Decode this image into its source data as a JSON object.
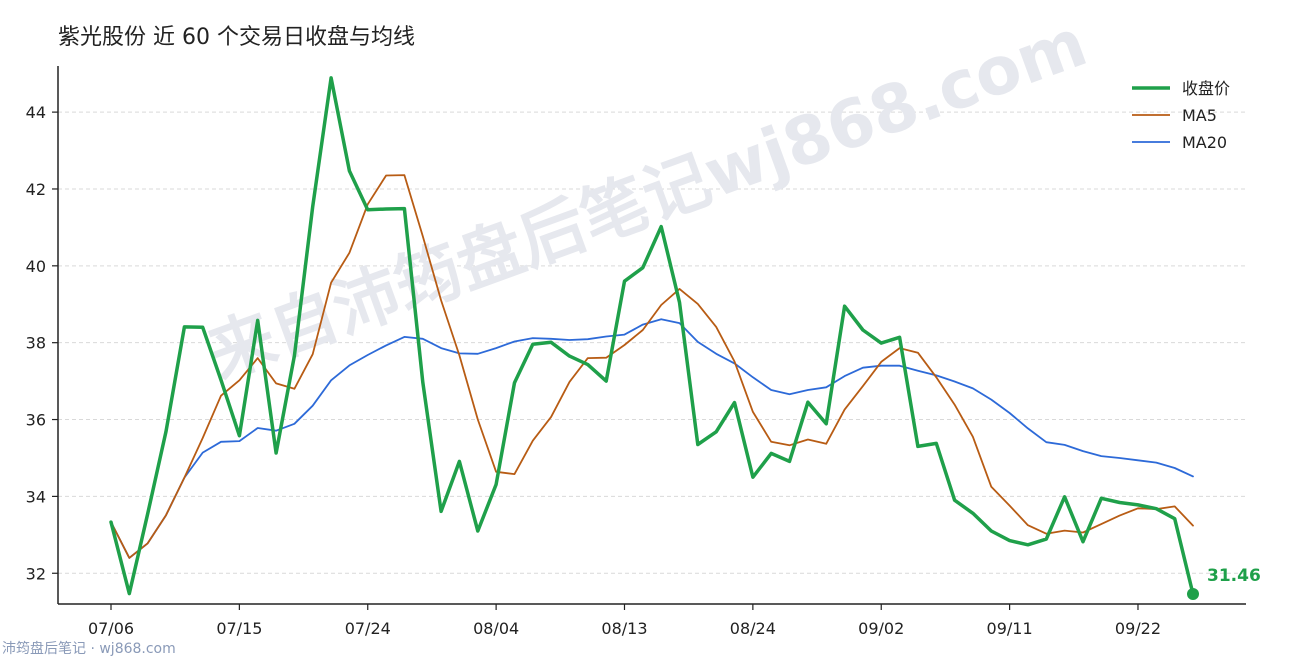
{
  "chart_data": {
    "type": "line",
    "title": "紫光股份 近 60 个交易日收盘与均线",
    "x_ticks": [
      "07/06",
      "07/15",
      "07/24",
      "08/04",
      "08/13",
      "08/24",
      "09/02",
      "09/11",
      "09/22"
    ],
    "ylim": [
      31.2,
      45.2
    ],
    "y_ticks": [
      32,
      34,
      36,
      38,
      40,
      42,
      44
    ],
    "grid": "horizontal-dashed",
    "legend_position": "top-right",
    "series": [
      {
        "name": "收盘价",
        "color": "#1fa04a",
        "values": [
          33.33,
          31.47,
          33.55,
          35.69,
          38.41,
          38.4,
          37.03,
          35.58,
          38.58,
          35.13,
          37.66,
          41.54,
          44.89,
          42.47,
          41.46,
          41.48,
          41.49,
          36.97,
          33.61,
          34.91,
          33.1,
          34.31,
          36.96,
          37.96,
          38.01,
          37.65,
          37.43,
          37.0,
          39.6,
          39.95,
          41.02,
          39.05,
          35.35,
          35.68,
          36.44,
          34.5,
          35.12,
          34.91,
          36.45,
          35.89,
          38.95,
          38.33,
          37.99,
          38.14,
          35.3,
          35.38,
          33.9,
          33.56,
          33.1,
          32.85,
          32.74,
          32.89,
          33.99,
          32.82,
          33.95,
          33.84,
          33.78,
          33.68,
          33.42,
          31.46
        ]
      },
      {
        "name": "MA5",
        "color": "#b85c14",
        "values": [
          33.33,
          32.4,
          32.78,
          33.51,
          34.49,
          35.52,
          36.62,
          37.02,
          37.6,
          36.94,
          36.8,
          37.7,
          39.56,
          40.34,
          41.6,
          42.35,
          42.36,
          40.77,
          39.1,
          37.67,
          36.0,
          34.64,
          34.58,
          35.45,
          36.07,
          36.98,
          37.6,
          37.61,
          37.94,
          38.33,
          38.98,
          39.4,
          39.01,
          38.41,
          37.51,
          36.2,
          35.42,
          35.33,
          35.48,
          35.37,
          36.26,
          36.87,
          37.5,
          37.86,
          37.74,
          37.1,
          36.39,
          35.55,
          34.25,
          33.76,
          33.25,
          33.03,
          33.11,
          33.06,
          33.28,
          33.5,
          33.69,
          33.67,
          33.74,
          33.24
        ]
      },
      {
        "name": "MA20",
        "color": "#2d6ad8",
        "values": [
          33.33,
          32.4,
          32.78,
          33.51,
          34.49,
          35.14,
          35.42,
          35.44,
          35.78,
          35.71,
          35.89,
          36.36,
          37.02,
          37.41,
          37.68,
          37.93,
          38.15,
          38.1,
          37.86,
          37.72,
          37.71,
          37.86,
          38.03,
          38.12,
          38.1,
          38.07,
          38.09,
          38.16,
          38.21,
          38.47,
          38.61,
          38.51,
          38.02,
          37.71,
          37.46,
          37.1,
          36.77,
          36.66,
          36.77,
          36.84,
          37.13,
          37.35,
          37.4,
          37.4,
          37.27,
          37.15,
          36.99,
          36.81,
          36.52,
          36.17,
          35.77,
          35.41,
          35.34,
          35.18,
          35.05,
          35.0,
          34.94,
          34.88,
          34.74,
          34.52
        ]
      }
    ],
    "end_label": {
      "series": "收盘价",
      "text": "31.46"
    }
  },
  "watermark": "来自沛筠盘后笔记wj868.com",
  "footer": "沛筠盘后笔记 · wj868.com"
}
